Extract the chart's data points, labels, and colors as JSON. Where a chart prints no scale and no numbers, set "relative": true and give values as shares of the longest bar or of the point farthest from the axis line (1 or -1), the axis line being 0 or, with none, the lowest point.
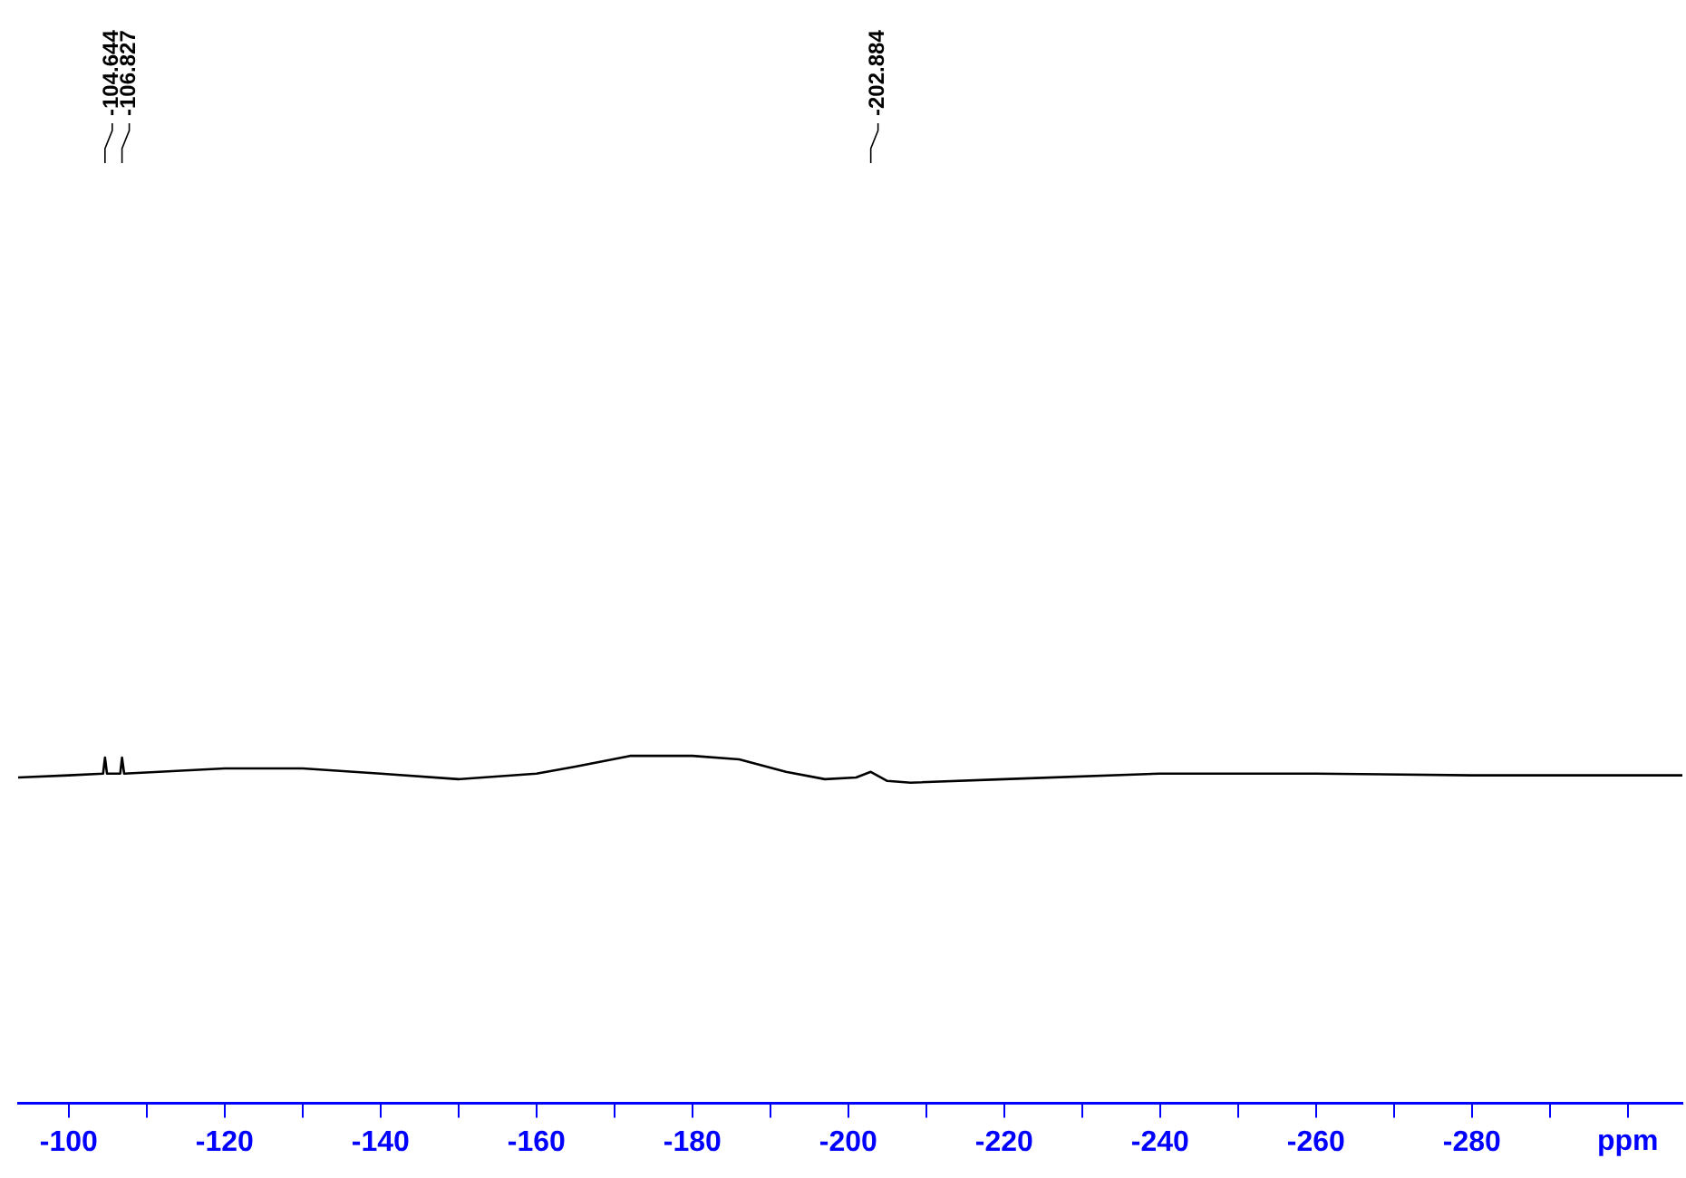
{
  "chart_data": {
    "type": "line",
    "relative": true,
    "xlabel": "ppm",
    "xlim": [
      -93.5,
      -307
    ],
    "xticks": [
      -100,
      {
        "value": -110,
        "label": null
      },
      -120,
      {
        "value": -130,
        "label": null
      },
      -140,
      {
        "value": -150,
        "label": null
      },
      -160,
      {
        "value": -170,
        "label": null
      },
      -180,
      {
        "value": -190,
        "label": null
      },
      -200,
      {
        "value": -210,
        "label": null
      },
      -220,
      {
        "value": -230,
        "label": null
      },
      -240,
      {
        "value": -250,
        "label": null
      },
      -260,
      {
        "value": -270,
        "label": null
      },
      -280,
      {
        "value": -290,
        "label": null
      },
      {
        "value": -300,
        "label": null
      }
    ],
    "x": [
      -93.5,
      -100,
      -104.4,
      -104.644,
      -104.9,
      -106.6,
      -106.827,
      -107.1,
      -120,
      -130,
      -140,
      -150,
      -160,
      -165,
      -172,
      -180,
      -186,
      -192,
      -197,
      -201,
      -202.884,
      -205,
      -208,
      -220,
      -240,
      -260,
      -280,
      -307
    ],
    "series": [
      {
        "color": "#000000",
        "values": [
          0.938,
          0.944,
          0.949,
          0.995,
          0.949,
          0.949,
          0.995,
          0.949,
          0.964,
          0.964,
          0.949,
          0.933,
          0.949,
          0.969,
          1,
          1,
          0.99,
          0.954,
          0.933,
          0.938,
          0.954,
          0.928,
          0.923,
          0.933,
          0.949,
          0.949,
          0.944,
          0.944
        ]
      }
    ],
    "annotations": [
      {
        "text": "-104.644",
        "x": -104.644
      },
      {
        "text": "-106.827",
        "x": -106.827
      },
      {
        "text": "-202.884",
        "x": -202.884
      }
    ],
    "grid": false,
    "legend": false,
    "marker": "none",
    "line_style": "solid"
  }
}
